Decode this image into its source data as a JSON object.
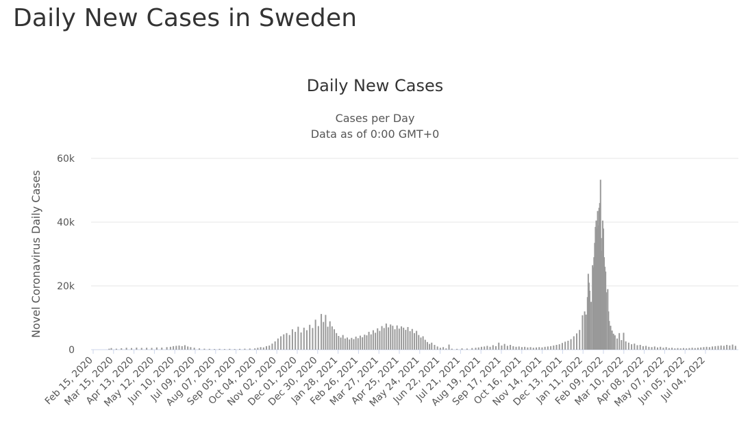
{
  "page": {
    "heading": "Daily New Cases in Sweden"
  },
  "chart_data": {
    "type": "bar",
    "title": "Daily New Cases",
    "subtitle_lines": [
      "Cases per Day",
      "Data as of 0:00 GMT+0"
    ],
    "ylabel": "Novel Coronavirus Daily Cases",
    "xlabel": "",
    "ylim": [
      0,
      60000
    ],
    "y_ticks": [
      {
        "value": 0,
        "label": "0"
      },
      {
        "value": 20000,
        "label": "20k"
      },
      {
        "value": 40000,
        "label": "40k"
      },
      {
        "value": 60000,
        "label": "60k"
      }
    ],
    "grid": true,
    "legend": "none",
    "x_range": [
      "2020-02-15",
      "2022-07-31"
    ],
    "x_tick_labels": [
      "Feb 15, 2020",
      "Mar 15, 2020",
      "Apr 13, 2020",
      "May 12, 2020",
      "Jun 10, 2020",
      "Jul 09, 2020",
      "Aug 07, 2020",
      "Sep 05, 2020",
      "Oct 04, 2020",
      "Nov 02, 2020",
      "Dec 01, 2020",
      "Dec 30, 2020",
      "Jan 28, 2021",
      "Feb 26, 2021",
      "Mar 27, 2021",
      "Apr 25, 2021",
      "May 24, 2021",
      "Jun 22, 2021",
      "Jul 21, 2021",
      "Aug 19, 2021",
      "Sep 17, 2021",
      "Oct 16, 2021",
      "Nov 14, 2021",
      "Dec 13, 2021",
      "Jan 11, 2022",
      "Feb 09, 2022",
      "Mar 10, 2022",
      "Apr 08, 2022",
      "May 07, 2022",
      "Jun 05, 2022",
      "Jul 04, 2022"
    ],
    "bar_color": "#999999",
    "series": [
      {
        "name": "Daily Cases",
        "points": [
          [
            "2020-03-11",
            300
          ],
          [
            "2020-03-14",
            500
          ],
          [
            "2020-03-21",
            300
          ],
          [
            "2020-03-28",
            450
          ],
          [
            "2020-04-04",
            600
          ],
          [
            "2020-04-11",
            500
          ],
          [
            "2020-04-18",
            650
          ],
          [
            "2020-04-25",
            550
          ],
          [
            "2020-05-02",
            600
          ],
          [
            "2020-05-09",
            550
          ],
          [
            "2020-05-16",
            700
          ],
          [
            "2020-05-23",
            650
          ],
          [
            "2020-05-30",
            800
          ],
          [
            "2020-06-04",
            900
          ],
          [
            "2020-06-08",
            1100
          ],
          [
            "2020-06-12",
            1200
          ],
          [
            "2020-06-16",
            1300
          ],
          [
            "2020-06-20",
            1100
          ],
          [
            "2020-06-24",
            1400
          ],
          [
            "2020-06-28",
            1000
          ],
          [
            "2020-07-02",
            800
          ],
          [
            "2020-07-07",
            600
          ],
          [
            "2020-07-14",
            400
          ],
          [
            "2020-07-21",
            300
          ],
          [
            "2020-07-28",
            250
          ],
          [
            "2020-08-04",
            200
          ],
          [
            "2020-08-11",
            250
          ],
          [
            "2020-08-18",
            200
          ],
          [
            "2020-08-25",
            250
          ],
          [
            "2020-09-01",
            200
          ],
          [
            "2020-09-08",
            250
          ],
          [
            "2020-09-15",
            300
          ],
          [
            "2020-09-22",
            350
          ],
          [
            "2020-09-29",
            400
          ],
          [
            "2020-10-03",
            600
          ],
          [
            "2020-10-07",
            800
          ],
          [
            "2020-10-11",
            700
          ],
          [
            "2020-10-15",
            1100
          ],
          [
            "2020-10-19",
            1300
          ],
          [
            "2020-10-23",
            1900
          ],
          [
            "2020-10-27",
            2600
          ],
          [
            "2020-10-31",
            3500
          ],
          [
            "2020-11-04",
            4200
          ],
          [
            "2020-11-08",
            4800
          ],
          [
            "2020-11-12",
            5200
          ],
          [
            "2020-11-16",
            4600
          ],
          [
            "2020-11-20",
            6400
          ],
          [
            "2020-11-24",
            5600
          ],
          [
            "2020-11-28",
            7200
          ],
          [
            "2020-12-02",
            5400
          ],
          [
            "2020-12-06",
            6900
          ],
          [
            "2020-12-10",
            6100
          ],
          [
            "2020-12-14",
            7800
          ],
          [
            "2020-12-18",
            6800
          ],
          [
            "2020-12-22",
            9400
          ],
          [
            "2020-12-26",
            7400
          ],
          [
            "2020-12-30",
            11200
          ],
          [
            "2021-01-02",
            8700
          ],
          [
            "2021-01-05",
            10900
          ],
          [
            "2021-01-08",
            7200
          ],
          [
            "2021-01-11",
            8900
          ],
          [
            "2021-01-14",
            7300
          ],
          [
            "2021-01-17",
            6400
          ],
          [
            "2021-01-20",
            5200
          ],
          [
            "2021-01-23",
            4300
          ],
          [
            "2021-01-26",
            3800
          ],
          [
            "2021-01-29",
            4600
          ],
          [
            "2021-02-01",
            3500
          ],
          [
            "2021-02-04",
            3800
          ],
          [
            "2021-02-07",
            3200
          ],
          [
            "2021-02-10",
            3700
          ],
          [
            "2021-02-13",
            3300
          ],
          [
            "2021-02-16",
            4100
          ],
          [
            "2021-02-19",
            3600
          ],
          [
            "2021-02-22",
            4400
          ],
          [
            "2021-02-25",
            3900
          ],
          [
            "2021-02-28",
            4700
          ],
          [
            "2021-03-03",
            4500
          ],
          [
            "2021-03-06",
            5600
          ],
          [
            "2021-03-09",
            4800
          ],
          [
            "2021-03-12",
            6100
          ],
          [
            "2021-03-15",
            5300
          ],
          [
            "2021-03-18",
            6700
          ],
          [
            "2021-03-21",
            5900
          ],
          [
            "2021-03-24",
            7400
          ],
          [
            "2021-03-27",
            6800
          ],
          [
            "2021-03-30",
            8200
          ],
          [
            "2021-04-02",
            7000
          ],
          [
            "2021-04-05",
            7900
          ],
          [
            "2021-04-08",
            7500
          ],
          [
            "2021-04-11",
            6400
          ],
          [
            "2021-04-14",
            7600
          ],
          [
            "2021-04-17",
            6600
          ],
          [
            "2021-04-20",
            7300
          ],
          [
            "2021-04-23",
            6900
          ],
          [
            "2021-04-26",
            6200
          ],
          [
            "2021-04-29",
            7100
          ],
          [
            "2021-05-02",
            5800
          ],
          [
            "2021-05-05",
            6500
          ],
          [
            "2021-05-08",
            5200
          ],
          [
            "2021-05-11",
            5900
          ],
          [
            "2021-05-14",
            4600
          ],
          [
            "2021-05-17",
            3800
          ],
          [
            "2021-05-20",
            4200
          ],
          [
            "2021-05-23",
            3100
          ],
          [
            "2021-05-26",
            2400
          ],
          [
            "2021-05-29",
            1800
          ],
          [
            "2021-06-01",
            2200
          ],
          [
            "2021-06-05",
            1500
          ],
          [
            "2021-06-09",
            1000
          ],
          [
            "2021-06-13",
            600
          ],
          [
            "2021-06-17",
            800
          ],
          [
            "2021-06-21",
            400
          ],
          [
            "2021-06-25",
            1600
          ],
          [
            "2021-06-29",
            300
          ],
          [
            "2021-07-06",
            250
          ],
          [
            "2021-07-13",
            400
          ],
          [
            "2021-07-20",
            350
          ],
          [
            "2021-07-27",
            500
          ],
          [
            "2021-08-01",
            600
          ],
          [
            "2021-08-05",
            700
          ],
          [
            "2021-08-09",
            900
          ],
          [
            "2021-08-13",
            1000
          ],
          [
            "2021-08-17",
            1200
          ],
          [
            "2021-08-21",
            900
          ],
          [
            "2021-08-25",
            1400
          ],
          [
            "2021-08-29",
            1100
          ],
          [
            "2021-09-02",
            2200
          ],
          [
            "2021-09-06",
            1300
          ],
          [
            "2021-09-10",
            1800
          ],
          [
            "2021-09-14",
            1200
          ],
          [
            "2021-09-18",
            1500
          ],
          [
            "2021-09-22",
            1100
          ],
          [
            "2021-09-26",
            900
          ],
          [
            "2021-09-30",
            1000
          ],
          [
            "2021-10-04",
            800
          ],
          [
            "2021-10-08",
            900
          ],
          [
            "2021-10-12",
            700
          ],
          [
            "2021-10-16",
            800
          ],
          [
            "2021-10-20",
            600
          ],
          [
            "2021-10-24",
            700
          ],
          [
            "2021-10-28",
            800
          ],
          [
            "2021-11-01",
            700
          ],
          [
            "2021-11-05",
            900
          ],
          [
            "2021-11-09",
            1000
          ],
          [
            "2021-11-13",
            1100
          ],
          [
            "2021-11-17",
            1300
          ],
          [
            "2021-11-21",
            1500
          ],
          [
            "2021-11-25",
            1700
          ],
          [
            "2021-11-29",
            2100
          ],
          [
            "2021-12-03",
            2500
          ],
          [
            "2021-12-07",
            2800
          ],
          [
            "2021-12-11",
            3300
          ],
          [
            "2021-12-15",
            4200
          ],
          [
            "2021-12-19",
            5100
          ],
          [
            "2021-12-23",
            6200
          ],
          [
            "2021-12-27",
            10800
          ],
          [
            "2021-12-30",
            12000
          ],
          [
            "2022-01-01",
            11000
          ],
          [
            "2022-01-03",
            16500
          ],
          [
            "2022-01-04",
            23800
          ],
          [
            "2022-01-05",
            21000
          ],
          [
            "2022-01-06",
            18500
          ],
          [
            "2022-01-08",
            15000
          ],
          [
            "2022-01-10",
            26500
          ],
          [
            "2022-01-11",
            25800
          ],
          [
            "2022-01-12",
            29000
          ],
          [
            "2022-01-13",
            33500
          ],
          [
            "2022-01-14",
            38500
          ],
          [
            "2022-01-15",
            40500
          ],
          [
            "2022-01-16",
            38000
          ],
          [
            "2022-01-17",
            43500
          ],
          [
            "2022-01-18",
            39000
          ],
          [
            "2022-01-19",
            44500
          ],
          [
            "2022-01-20",
            46000
          ],
          [
            "2022-01-21",
            53300
          ],
          [
            "2022-01-22",
            35000
          ],
          [
            "2022-01-23",
            31000
          ],
          [
            "2022-01-24",
            40500
          ],
          [
            "2022-01-25",
            38000
          ],
          [
            "2022-01-26",
            29000
          ],
          [
            "2022-01-27",
            26000
          ],
          [
            "2022-01-28",
            24500
          ],
          [
            "2022-01-29",
            18000
          ],
          [
            "2022-01-31",
            19000
          ],
          [
            "2022-02-01",
            12000
          ],
          [
            "2022-02-02",
            9000
          ],
          [
            "2022-02-04",
            7500
          ],
          [
            "2022-02-06",
            6000
          ],
          [
            "2022-02-08",
            5000
          ],
          [
            "2022-02-10",
            4500
          ],
          [
            "2022-02-13",
            3500
          ],
          [
            "2022-02-16",
            5200
          ],
          [
            "2022-02-19",
            3000
          ],
          [
            "2022-02-22",
            5300
          ],
          [
            "2022-02-25",
            2600
          ],
          [
            "2022-03-01",
            2200
          ],
          [
            "2022-03-05",
            1700
          ],
          [
            "2022-03-09",
            1900
          ],
          [
            "2022-03-13",
            1400
          ],
          [
            "2022-03-17",
            1500
          ],
          [
            "2022-03-21",
            1100
          ],
          [
            "2022-03-25",
            1200
          ],
          [
            "2022-03-29",
            900
          ],
          [
            "2022-04-02",
            800
          ],
          [
            "2022-04-06",
            1000
          ],
          [
            "2022-04-10",
            700
          ],
          [
            "2022-04-14",
            900
          ],
          [
            "2022-04-18",
            600
          ],
          [
            "2022-04-22",
            800
          ],
          [
            "2022-04-26",
            500
          ],
          [
            "2022-04-30",
            600
          ],
          [
            "2022-05-04",
            400
          ],
          [
            "2022-05-08",
            500
          ],
          [
            "2022-05-12",
            400
          ],
          [
            "2022-05-16",
            500
          ],
          [
            "2022-05-20",
            400
          ],
          [
            "2022-05-24",
            500
          ],
          [
            "2022-05-28",
            600
          ],
          [
            "2022-06-01",
            500
          ],
          [
            "2022-06-05",
            600
          ],
          [
            "2022-06-09",
            700
          ],
          [
            "2022-06-13",
            800
          ],
          [
            "2022-06-17",
            900
          ],
          [
            "2022-06-21",
            800
          ],
          [
            "2022-06-25",
            1000
          ],
          [
            "2022-06-29",
            1100
          ],
          [
            "2022-07-03",
            1200
          ],
          [
            "2022-07-07",
            1300
          ],
          [
            "2022-07-11",
            1200
          ],
          [
            "2022-07-15",
            1500
          ],
          [
            "2022-07-19",
            1300
          ],
          [
            "2022-07-23",
            1600
          ],
          [
            "2022-07-27",
            1200
          ]
        ]
      }
    ]
  }
}
